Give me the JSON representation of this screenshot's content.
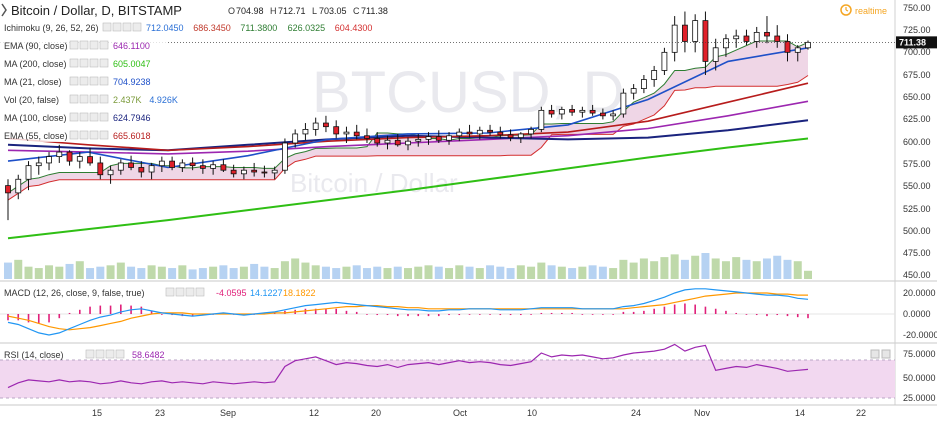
{
  "header": {
    "title": "Bitcoin / Dollar, D, BITSTAMP",
    "ohlc": {
      "o_label": "O",
      "o": "704.98",
      "h_label": "H",
      "h": "712.71",
      "l_label": "L",
      "l": "703.05",
      "c_label": "C",
      "c": "711.38"
    },
    "realtime_label": "realtime",
    "watermark": "BTCUSD, D",
    "watermark_sub": "Bitcoin / Dollar"
  },
  "legend": [
    {
      "label": "Ichimoku (9, 26, 52, 26)",
      "values": [
        "712.0450",
        "686.3450",
        "711.3800",
        "626.0325",
        "604.4300"
      ],
      "colors": [
        "#2a6fd6",
        "#c0392b",
        "#2e7d32",
        "#2e7d32",
        "#d32f2f"
      ]
    },
    {
      "label": "EMA (90, close)",
      "values": [
        "646.1100"
      ],
      "colors": [
        "#9c27b0"
      ]
    },
    {
      "label": "MA (200, close)",
      "values": [
        "605.0047"
      ],
      "colors": [
        "#2fbf14"
      ]
    },
    {
      "label": "MA (21, close)",
      "values": [
        "704.9238"
      ],
      "colors": [
        "#1e50c8"
      ]
    },
    {
      "label": "Vol (20, false)",
      "values": [
        "2.437K",
        "4.926K"
      ],
      "colors": [
        "#7a9a3a",
        "#2a6fd6"
      ]
    },
    {
      "label": "MA (100, close)",
      "values": [
        "624.7946"
      ],
      "colors": [
        "#1a237e"
      ]
    },
    {
      "label": "EMA (55, close)",
      "values": [
        "665.6018"
      ],
      "colors": [
        "#b71c1c"
      ]
    }
  ],
  "colors": {
    "up": "#ffffff",
    "down": "#e0202a",
    "candle_border": "#111111",
    "cloud_fill": "#e8c4dc",
    "rsi_band": "#f2d8f0",
    "macd_line": "#2196f3",
    "signal_line": "#ff9800",
    "hist": "#e0207a",
    "rsi_line": "#9c27b0"
  },
  "price_axis": {
    "ticks": [
      "750.00",
      "725.00",
      "700.00",
      "675.00",
      "650.00",
      "625.00",
      "600.00",
      "575.00",
      "550.00",
      "525.00",
      "500.00",
      "475.00",
      "450.00"
    ],
    "last": "711.38"
  },
  "macd": {
    "label": "MACD (12, 26, close, 9, false, true)",
    "values": [
      "-4.0595",
      "14.1227",
      "18.1822"
    ],
    "colors": [
      "#e0207a",
      "#2196f3",
      "#ff9800"
    ],
    "ticks": [
      "20.0000",
      "0.0000",
      "-20.0000"
    ]
  },
  "rsi": {
    "label": "RSI (14, close)",
    "value": "58.6482",
    "value_color": "#9c27b0",
    "ticks": [
      "75.0000",
      "50.0000",
      "25.0000"
    ]
  },
  "time_axis": {
    "labels": [
      "15",
      "23",
      "Sep",
      "12",
      "20",
      "Oct",
      "10",
      "24",
      "Nov",
      "14",
      "22"
    ]
  },
  "chart_data": {
    "type": "candlestick",
    "title": "Bitcoin / Dollar, D, BITSTAMP",
    "ylim": [
      450,
      755
    ],
    "x_labels": [
      "15",
      "23",
      "Sep",
      "12",
      "20",
      "Oct",
      "10",
      "24",
      "Nov",
      "14",
      "22"
    ],
    "ohlc": [
      [
        553,
        560,
        515,
        545
      ],
      [
        545,
        565,
        538,
        560
      ],
      [
        560,
        580,
        548,
        575
      ],
      [
        575,
        585,
        565,
        578
      ],
      [
        578,
        590,
        570,
        585
      ],
      [
        585,
        598,
        578,
        590
      ],
      [
        590,
        592,
        575,
        580
      ],
      [
        580,
        590,
        572,
        585
      ],
      [
        585,
        595,
        575,
        578
      ],
      [
        578,
        585,
        560,
        565
      ],
      [
        565,
        575,
        555,
        570
      ],
      [
        570,
        582,
        565,
        578
      ],
      [
        578,
        586,
        570,
        573
      ],
      [
        573,
        580,
        562,
        568
      ],
      [
        568,
        578,
        560,
        575
      ],
      [
        575,
        585,
        568,
        580
      ],
      [
        580,
        585,
        570,
        573
      ],
      [
        573,
        582,
        568,
        578
      ],
      [
        578,
        584,
        570,
        575
      ],
      [
        575,
        582,
        566,
        572
      ],
      [
        572,
        580,
        565,
        576
      ],
      [
        576,
        582,
        568,
        570
      ],
      [
        570,
        576,
        562,
        566
      ],
      [
        566,
        574,
        560,
        570
      ],
      [
        570,
        578,
        563,
        568
      ],
      [
        568,
        575,
        562,
        567
      ],
      [
        567,
        574,
        560,
        570
      ],
      [
        570,
        605,
        566,
        600
      ],
      [
        600,
        615,
        595,
        610
      ],
      [
        610,
        622,
        603,
        615
      ],
      [
        615,
        628,
        608,
        622
      ],
      [
        622,
        630,
        612,
        618
      ],
      [
        618,
        625,
        605,
        610
      ],
      [
        610,
        618,
        600,
        612
      ],
      [
        612,
        620,
        604,
        608
      ],
      [
        608,
        616,
        600,
        605
      ],
      [
        605,
        612,
        596,
        600
      ],
      [
        600,
        608,
        593,
        603
      ],
      [
        603,
        610,
        596,
        598
      ],
      [
        598,
        606,
        592,
        602
      ],
      [
        602,
        610,
        596,
        604
      ],
      [
        604,
        612,
        598,
        607
      ],
      [
        607,
        614,
        600,
        603
      ],
      [
        603,
        612,
        598,
        608
      ],
      [
        608,
        616,
        602,
        612
      ],
      [
        612,
        620,
        606,
        610
      ],
      [
        610,
        618,
        604,
        614
      ],
      [
        614,
        620,
        608,
        612
      ],
      [
        612,
        618,
        605,
        609
      ],
      [
        609,
        615,
        602,
        606
      ],
      [
        606,
        612,
        600,
        610
      ],
      [
        610,
        618,
        605,
        615
      ],
      [
        615,
        640,
        612,
        636
      ],
      [
        636,
        642,
        628,
        632
      ],
      [
        632,
        640,
        626,
        637
      ],
      [
        637,
        642,
        630,
        634
      ],
      [
        634,
        640,
        628,
        636
      ],
      [
        636,
        642,
        630,
        633
      ],
      [
        633,
        638,
        626,
        630
      ],
      [
        630,
        636,
        625,
        632
      ],
      [
        632,
        660,
        628,
        655
      ],
      [
        655,
        665,
        648,
        660
      ],
      [
        660,
        675,
        655,
        670
      ],
      [
        670,
        685,
        662,
        680
      ],
      [
        680,
        705,
        675,
        700
      ],
      [
        700,
        740,
        690,
        730
      ],
      [
        730,
        745,
        700,
        712
      ],
      [
        712,
        742,
        700,
        735
      ],
      [
        735,
        745,
        675,
        690
      ],
      [
        690,
        715,
        680,
        705
      ],
      [
        705,
        720,
        695,
        715
      ],
      [
        715,
        725,
        705,
        718
      ],
      [
        718,
        725,
        708,
        712
      ],
      [
        712,
        728,
        705,
        722
      ],
      [
        722,
        740,
        710,
        718
      ],
      [
        718,
        730,
        705,
        712
      ],
      [
        712,
        720,
        690,
        700
      ],
      [
        700,
        708,
        690,
        705
      ],
      [
        705,
        713,
        703,
        711
      ]
    ],
    "series": [
      {
        "name": "MA (200, close)",
        "values": [
          495,
          505,
          515,
          526,
          537,
          548,
          560,
          572,
          584,
          595,
          605
        ]
      },
      {
        "name": "EMA (90, close)",
        "values": [
          592,
          590,
          588,
          591,
          596,
          600,
          604,
          608,
          616,
          630,
          646
        ]
      },
      {
        "name": "MA (100, close)",
        "values": [
          598,
          594,
          592,
          598,
          604,
          608,
          606,
          604,
          606,
          614,
          625
        ]
      },
      {
        "name": "EMA (55, close)",
        "values": [
          605,
          598,
          592,
          596,
          602,
          606,
          608,
          612,
          624,
          645,
          666
        ]
      },
      {
        "name": "MA (21, close)",
        "values": [
          580,
          590,
          573,
          586,
          604,
          610,
          611,
          620,
          648,
          690,
          705
        ]
      }
    ],
    "volume": [
      12,
      14,
      9,
      8,
      10,
      9,
      11,
      13,
      8,
      9,
      10,
      12,
      9,
      8,
      10,
      9,
      8,
      10,
      7,
      8,
      9,
      10,
      8,
      9,
      11,
      9,
      8,
      13,
      15,
      12,
      10,
      9,
      8,
      9,
      10,
      8,
      9,
      8,
      9,
      8,
      9,
      10,
      9,
      8,
      10,
      9,
      8,
      10,
      9,
      8,
      10,
      9,
      12,
      10,
      9,
      8,
      9,
      10,
      9,
      8,
      14,
      12,
      15,
      13,
      16,
      18,
      14,
      17,
      19,
      15,
      13,
      16,
      14,
      13,
      15,
      17,
      14,
      13,
      6
    ],
    "macd": [
      -8,
      -10,
      -14,
      -18,
      -20,
      -18,
      -14,
      -10,
      -6,
      -3,
      -1,
      2,
      4,
      5,
      3,
      1,
      0,
      -1,
      -2,
      -1,
      0,
      1,
      0,
      -1,
      0,
      1,
      2,
      4,
      6,
      8,
      9,
      10,
      11,
      10,
      9,
      8,
      7,
      6,
      5,
      4,
      4,
      3,
      3,
      4,
      4,
      5,
      5,
      5,
      4,
      4,
      4,
      5,
      6,
      6,
      6,
      6,
      5,
      5,
      5,
      5,
      7,
      8,
      10,
      13,
      16,
      20,
      23,
      24,
      24,
      23,
      22,
      21,
      20,
      19,
      18,
      18,
      17,
      15,
      14
    ],
    "macd_signal": [
      -2,
      -4,
      -6,
      -9,
      -12,
      -14,
      -15,
      -14,
      -13,
      -11,
      -9,
      -7,
      -4,
      -2,
      0,
      1,
      1,
      1,
      0,
      0,
      0,
      0,
      0,
      0,
      0,
      0,
      1,
      1,
      2,
      3,
      4,
      5,
      6,
      7,
      7,
      8,
      8,
      7,
      7,
      6,
      6,
      5,
      5,
      5,
      5,
      5,
      5,
      5,
      5,
      5,
      5,
      5,
      5,
      5,
      5,
      5,
      5,
      5,
      5,
      5,
      5,
      6,
      7,
      8,
      9,
      11,
      13,
      15,
      17,
      18,
      19,
      20,
      20,
      20,
      20,
      19,
      19,
      18,
      18
    ],
    "rsi": [
      40,
      45,
      48,
      47,
      46,
      48,
      46,
      47,
      46,
      44,
      45,
      47,
      45,
      44,
      46,
      47,
      45,
      46,
      45,
      44,
      46,
      45,
      44,
      45,
      46,
      45,
      46,
      62,
      68,
      70,
      72,
      68,
      64,
      66,
      65,
      63,
      62,
      64,
      61,
      64,
      65,
      66,
      64,
      66,
      68,
      66,
      67,
      66,
      64,
      63,
      65,
      67,
      76,
      72,
      74,
      73,
      74,
      72,
      70,
      71,
      74,
      76,
      77,
      78,
      80,
      85,
      78,
      82,
      84,
      58,
      60,
      62,
      61,
      64,
      62,
      60,
      57,
      58,
      59
    ]
  }
}
